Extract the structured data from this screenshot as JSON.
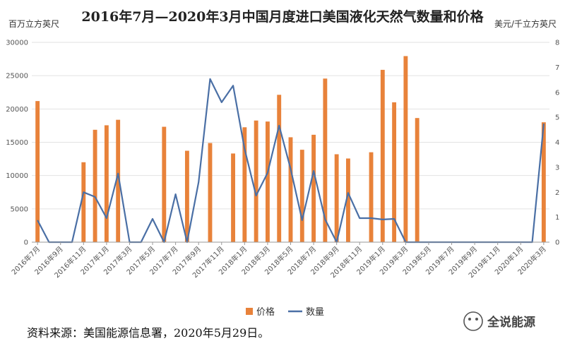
{
  "chart_data": {
    "type": "bar+line",
    "title": "2016年7月—2020年3月中国月度进口美国液化天然气数量和价格",
    "left_unit": "百万立方英尺",
    "right_unit": "美元/千立方英尺",
    "left_axis": {
      "min": 0,
      "max": 30000,
      "step": 5000
    },
    "right_axis": {
      "min": 0,
      "max": 8,
      "step": 1
    },
    "x_labels": [
      "2016年7月",
      "2016年9月",
      "2016年11月",
      "2017年1月",
      "2017年3月",
      "2017年5月",
      "2017年7月",
      "2017年9月",
      "2017年11月",
      "2018年1月",
      "2018年3月",
      "2018年5月",
      "2018年7月",
      "2018年9月",
      "2018年11月",
      "2019年1月",
      "2019年3月",
      "2019年5月",
      "2019年7月",
      "2019年9月",
      "2019年11月",
      "2020年1月",
      "2020年3月"
    ],
    "months": 45,
    "series": [
      {
        "name": "价格",
        "kind": "bar",
        "color": "#E8823A",
        "values": [
          5.65,
          0,
          0,
          0,
          3.2,
          4.5,
          4.68,
          4.9,
          0,
          0,
          0,
          4.62,
          0,
          3.66,
          0,
          3.97,
          0,
          3.55,
          4.6,
          4.87,
          4.83,
          5.9,
          4.2,
          3.7,
          4.3,
          6.55,
          3.52,
          3.35,
          0,
          3.6,
          6.9,
          5.6,
          7.45,
          4.97,
          0,
          0,
          0,
          0,
          0,
          0,
          0,
          0,
          0,
          0,
          4.8
        ]
      },
      {
        "name": "数量",
        "kind": "line",
        "color": "#4A6FA5",
        "values": [
          3300,
          0,
          0,
          0,
          7500,
          6800,
          3600,
          10300,
          0,
          0,
          3500,
          0,
          7200,
          0,
          9000,
          24500,
          21000,
          23500,
          14000,
          7000,
          10400,
          17500,
          11000,
          3300,
          10700,
          3400,
          0,
          7400,
          3600,
          3600,
          3400,
          3500,
          0,
          0,
          0,
          0,
          0,
          0,
          0,
          0,
          0,
          0,
          0,
          0,
          17800
        ]
      }
    ],
    "legend": [
      {
        "label": "价格",
        "color": "#E8823A",
        "shape": "square"
      },
      {
        "label": "数量",
        "color": "#4A6FA5",
        "shape": "line"
      }
    ]
  },
  "source_note": "资料来源：美国能源信息署，2020年5月29日。",
  "watermark": "全说能源"
}
